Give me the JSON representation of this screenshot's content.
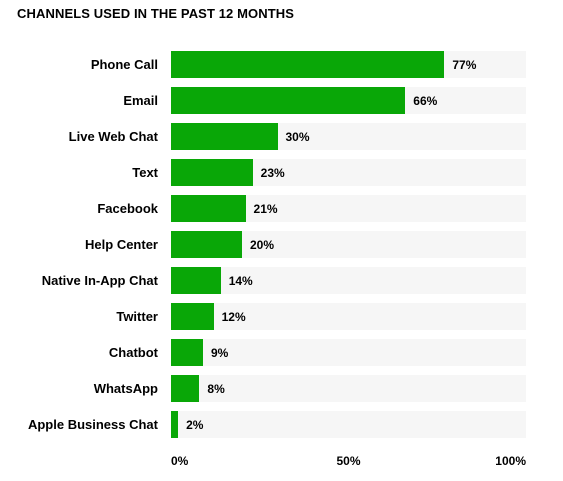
{
  "chart_data": {
    "type": "bar",
    "orientation": "horizontal",
    "title": "CHANNELS USED IN THE PAST 12 MONTHS",
    "categories": [
      "Phone Call",
      "Email",
      "Live Web Chat",
      "Text",
      "Facebook",
      "Help Center",
      "Native In-App Chat",
      "Twitter",
      "Chatbot",
      "WhatsApp",
      "Apple Business Chat"
    ],
    "values": [
      77,
      66,
      30,
      23,
      21,
      20,
      14,
      12,
      9,
      8,
      2
    ],
    "value_labels": [
      "77%",
      "66%",
      "30%",
      "23%",
      "21%",
      "20%",
      "14%",
      "12%",
      "9%",
      "8%",
      "2%"
    ],
    "xlim": [
      0,
      100
    ],
    "xticks": [
      0,
      50,
      100
    ],
    "xtick_labels": [
      "0%",
      "50%",
      "100%"
    ],
    "bar_color": "#09a707",
    "track_color": "#f6f6f6",
    "grid": false,
    "legend": "none"
  }
}
